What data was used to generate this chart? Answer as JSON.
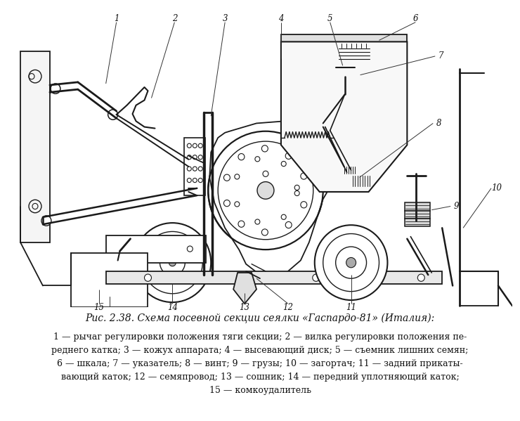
{
  "title": "Рис. 2.38. Схема посевной секции сеялки «Гаспардо-81» (Италия):",
  "caption_lines": [
    "1 — рычаг регулировки положения тяги секции; 2 — вилка регулировки положения пе-",
    "реднего катка; 3 — кожух аппарата; 4 — высевающий диск; 5 — съемник лишних семян;",
    "6 — шкала; 7 — указатель; 8 — винт; 9 — грузы; 10 — загортач; 11 — задний прикаты-",
    "вающий каток; 12 — семяпровод; 13 — сошник; 14 — передний уплотняющий каток;",
    "15 — комкоудалитель"
  ],
  "bg_color": "#ffffff",
  "line_color": "#1a1a1a",
  "label_color": "#111111",
  "fig_width": 7.4,
  "fig_height": 5.99,
  "dpi": 100
}
